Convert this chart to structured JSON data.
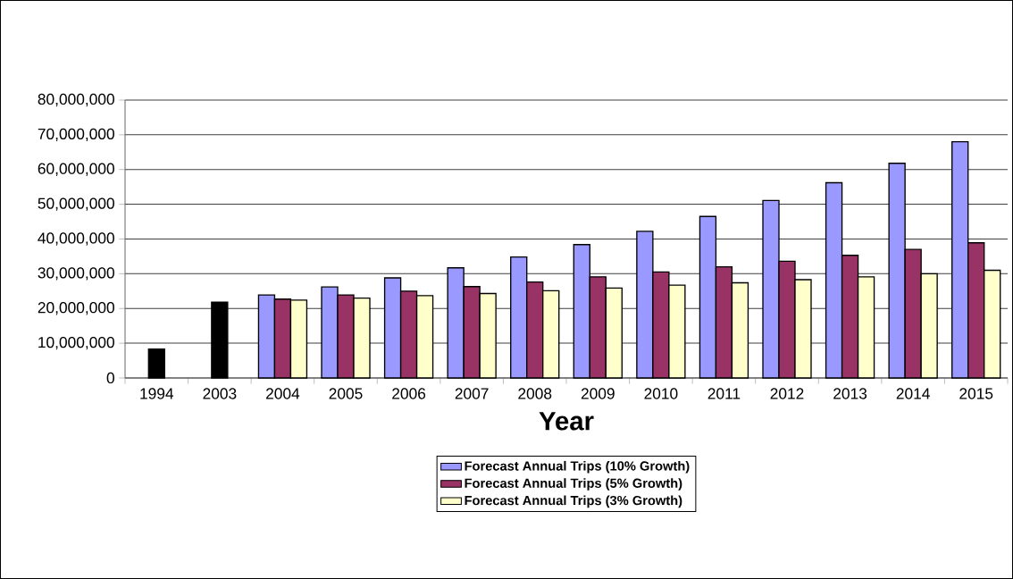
{
  "chart_data": {
    "type": "bar",
    "xlabel": "Year",
    "categories": [
      "1994",
      "2003",
      "2004",
      "2005",
      "2006",
      "2007",
      "2008",
      "2009",
      "2010",
      "2011",
      "2012",
      "2013",
      "2014",
      "2015"
    ],
    "series": [
      {
        "name": "Forecast Annual Trips (10% Growth)",
        "color": "#9999ff",
        "values": [
          null,
          null,
          23900000,
          26200000,
          28800000,
          31700000,
          34800000,
          38400000,
          42200000,
          46500000,
          51100000,
          56200000,
          61800000,
          68000000
        ]
      },
      {
        "name": "Forecast Annual Trips (5% Growth)",
        "color": "#993366",
        "colors": [
          "#000000",
          "#000000",
          "#993366",
          "#993366",
          "#993366",
          "#993366",
          "#993366",
          "#993366",
          "#993366",
          "#993366",
          "#993366",
          "#993366",
          "#993366",
          "#993366"
        ],
        "values": [
          8300000,
          21800000,
          22700000,
          23900000,
          25000000,
          26300000,
          27600000,
          29100000,
          30500000,
          32000000,
          33600000,
          35300000,
          37000000,
          38900000
        ]
      },
      {
        "name": "Forecast Annual Trips (3% Growth)",
        "color": "#ffffcc",
        "values": [
          null,
          null,
          22400000,
          23000000,
          23700000,
          24300000,
          25100000,
          25900000,
          26700000,
          27400000,
          28300000,
          29100000,
          30000000,
          31000000
        ]
      }
    ],
    "ylim": [
      0,
      80000000
    ],
    "yticks": [
      0,
      {
        "value": 10000000,
        "label": "10,000,000"
      },
      {
        "value": 20000000,
        "label": "20,000,000"
      },
      {
        "value": 30000000,
        "label": "30,000,000"
      },
      {
        "value": 40000000,
        "label": "40,000,000"
      },
      {
        "value": 50000000,
        "label": "50,000,000"
      },
      {
        "value": 60000000,
        "label": "60,000,000"
      },
      {
        "value": 70000000,
        "label": "70,000,000"
      },
      {
        "value": 80000000,
        "label": "80,000,000"
      }
    ],
    "grid": "y",
    "legend": "bottom"
  }
}
